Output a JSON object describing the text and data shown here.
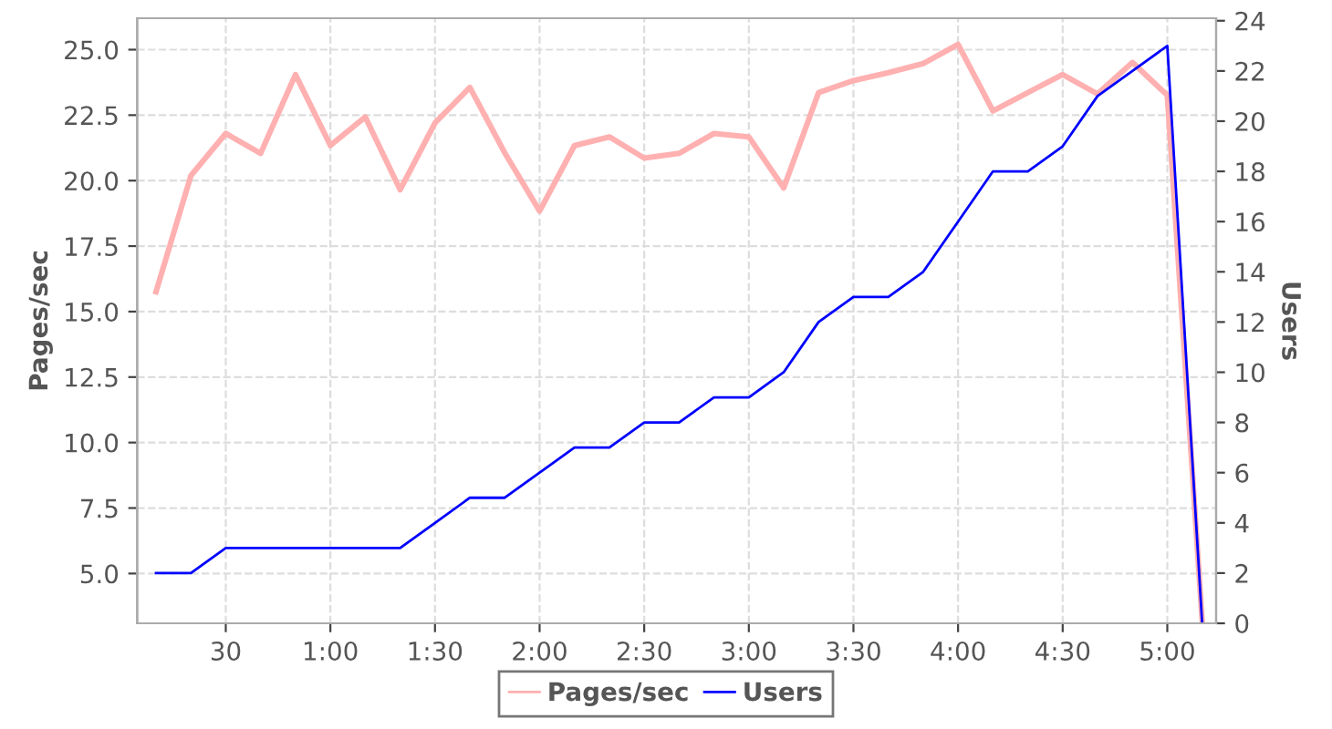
{
  "chart_data": {
    "type": "line",
    "xlabel": null,
    "ylabel": "Pages/sec",
    "y2label": "Users",
    "x": [
      10,
      20,
      30,
      40,
      50,
      60,
      70,
      80,
      90,
      100,
      110,
      120,
      130,
      140,
      150,
      160,
      170,
      180,
      190,
      200,
      210,
      220,
      230,
      240,
      250,
      260,
      270,
      280,
      290,
      300,
      310
    ],
    "series": [
      {
        "name": "Pages/sec",
        "color": "#ffb0b0",
        "values": [
          15.76,
          20.19,
          21.8,
          21.04,
          24.05,
          21.34,
          22.43,
          19.65,
          22.2,
          23.56,
          21.06,
          18.84,
          21.34,
          21.67,
          20.86,
          21.04,
          21.8,
          21.67,
          19.72,
          23.36,
          23.82,
          24.12,
          24.47,
          25.2,
          22.66,
          23.36,
          24.05,
          23.31,
          24.51,
          23.26,
          3.2
        ]
      },
      {
        "name": "Users",
        "color": "#0000ff",
        "axis": "y2",
        "values": [
          2,
          2,
          3,
          3,
          3,
          3,
          3,
          3,
          4,
          5,
          5,
          6,
          7,
          7,
          8,
          8,
          9,
          9,
          10,
          12,
          13,
          13,
          14,
          16,
          18,
          18,
          19,
          21,
          22,
          23,
          0
        ]
      }
    ],
    "xlim": [
      4.6,
      314
    ],
    "xticks": [
      {
        "value": 30,
        "label": "30"
      },
      {
        "value": 60,
        "label": "1:00"
      },
      {
        "value": 90,
        "label": "1:30"
      },
      {
        "value": 120,
        "label": "2:00"
      },
      {
        "value": 150,
        "label": "2:30"
      },
      {
        "value": 180,
        "label": "3:00"
      },
      {
        "value": 210,
        "label": "3:30"
      },
      {
        "value": 240,
        "label": "4:00"
      },
      {
        "value": 270,
        "label": "4:30"
      },
      {
        "value": 300,
        "label": "5:00"
      }
    ],
    "ylim": [
      3.1,
      26.2
    ],
    "yticks": [
      {
        "value": 5,
        "label": "5.0"
      },
      {
        "value": 7.5,
        "label": "7.5"
      },
      {
        "value": 10,
        "label": "10.0"
      },
      {
        "value": 12.5,
        "label": "12.5"
      },
      {
        "value": 15,
        "label": "15.0"
      },
      {
        "value": 17.5,
        "label": "17.5"
      },
      {
        "value": 20,
        "label": "20.0"
      },
      {
        "value": 22.5,
        "label": "22.5"
      },
      {
        "value": 25,
        "label": "25.0"
      }
    ],
    "y2lim": [
      0,
      24.1
    ],
    "y2ticks": [
      0,
      2,
      4,
      6,
      8,
      10,
      12,
      14,
      16,
      18,
      20,
      22,
      24
    ],
    "grid": true,
    "legend": "bottom",
    "marker": "none",
    "line_style": "solid"
  }
}
